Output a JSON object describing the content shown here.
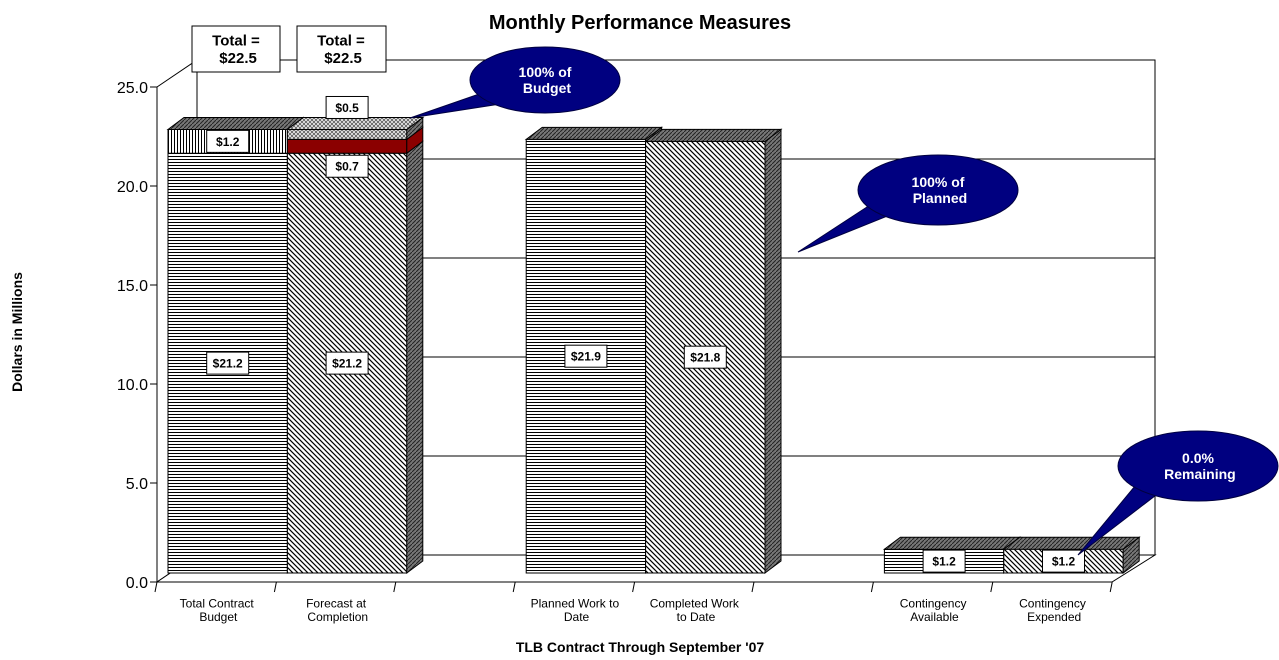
{
  "chart_data": {
    "type": "bar",
    "stacked": true,
    "three_d": true,
    "title": "Monthly Performance Measures",
    "x_label": "TLB Contract Through September '07",
    "y_label": "Dollars in Millions",
    "categories": [
      "Total Contract Budget",
      "Forecast at Completion",
      null,
      "Planned Work to Date",
      "Completed Work to Date",
      null,
      "Contingency Available",
      "Contingency Expended"
    ],
    "series": [
      {
        "color": "#000000",
        "patterns": [
          "hlines",
          "diag",
          null,
          "hlines",
          "diag",
          null,
          "hlines",
          "diag"
        ],
        "values": [
          21.2,
          21.2,
          null,
          21.9,
          21.8,
          null,
          1.2,
          1.2
        ],
        "value_labels": [
          "$21.2",
          "$21.2",
          null,
          "$21.9",
          "$21.8",
          null,
          "$1.2",
          "$1.2"
        ]
      },
      {
        "color": "#8b0000",
        "patterns": [
          "vlines",
          "solid",
          null,
          null,
          null,
          null,
          null,
          null
        ],
        "values": [
          1.2,
          0.7,
          null,
          null,
          null,
          null,
          null,
          null
        ],
        "value_labels": [
          "$1.2",
          "$0.7",
          null,
          null,
          null,
          null,
          null,
          null
        ]
      },
      {
        "color": "#c0c0c0",
        "patterns": [
          null,
          "cross",
          null,
          null,
          null,
          null,
          null,
          null
        ],
        "values": [
          null,
          0.5,
          null,
          null,
          null,
          null,
          null,
          null
        ],
        "value_labels": [
          null,
          "$0.5",
          null,
          null,
          null,
          null,
          null,
          null
        ]
      }
    ],
    "totals": [
      "Total = $22.5",
      "Total = $22.5"
    ],
    "callouts": [
      "100% of Budget",
      "100% of Planned",
      "0.0% Remaining"
    ],
    "ylim": [
      0,
      25
    ],
    "yticks": [
      {
        "value": 0,
        "label": "0.0"
      },
      {
        "value": 5,
        "label": "5.0"
      },
      {
        "value": 10,
        "label": "10.0"
      },
      {
        "value": 15,
        "label": "15.0"
      },
      {
        "value": 20,
        "label": "20.0"
      },
      {
        "value": 25,
        "label": "25.0"
      }
    ],
    "grid": true
  }
}
